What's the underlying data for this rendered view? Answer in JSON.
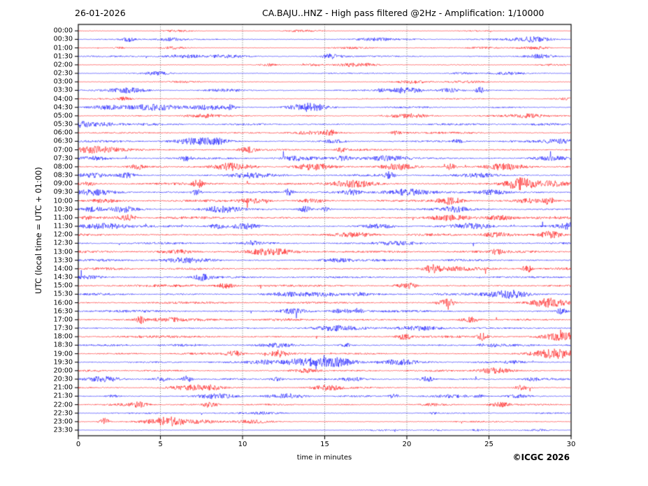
{
  "header": {
    "date": "26-01-2026",
    "title": "CA.BAJU..HNZ - High pass filtered @2Hz - Amplification: 1/10000"
  },
  "y_axis": {
    "label": "UTC (local time = UTC + 01:00)",
    "tick_labels": [
      "00:00",
      "00:30",
      "01:00",
      "01:30",
      "02:00",
      "02:30",
      "03:00",
      "03:30",
      "04:00",
      "04:30",
      "05:00",
      "05:30",
      "06:00",
      "06:30",
      "07:00",
      "07:30",
      "08:00",
      "08:30",
      "09:00",
      "09:30",
      "10:00",
      "10:30",
      "11:00",
      "11:30",
      "12:00",
      "12:30",
      "13:00",
      "13:30",
      "14:00",
      "14:30",
      "15:00",
      "15:30",
      "16:00",
      "16:30",
      "17:00",
      "17:30",
      "18:00",
      "18:30",
      "19:00",
      "19:30",
      "20:00",
      "20:30",
      "21:00",
      "21:30",
      "22:00",
      "22:30",
      "23:00",
      "23:30"
    ]
  },
  "x_axis": {
    "label": "time in minutes",
    "ticks": [
      "0",
      "5",
      "10",
      "15",
      "20",
      "25",
      "30"
    ],
    "range": [
      0,
      30
    ]
  },
  "footer": {
    "copyright": "©ICGC 2026"
  },
  "colors": {
    "trace_hour": "#ff0000",
    "trace_half_hour": "#0000ff",
    "grid": "#444444",
    "frame": "#000000",
    "background": "#ffffff",
    "text": "#000000"
  },
  "chart_data": {
    "type": "line",
    "subtype": "helicorder-seismogram",
    "station": "CA.BAJU..HNZ",
    "date_shown": "26-01-2026",
    "filter": "High pass filtered @2Hz",
    "amplification": "1/10000",
    "minutes_per_row": 30,
    "rows": 48,
    "grid_minutes": [
      5,
      10,
      15,
      20,
      25
    ],
    "row_labels": [
      "00:00",
      "00:30",
      "01:00",
      "01:30",
      "02:00",
      "02:30",
      "03:00",
      "03:30",
      "04:00",
      "04:30",
      "05:00",
      "05:30",
      "06:00",
      "06:30",
      "07:00",
      "07:30",
      "08:00",
      "08:30",
      "09:00",
      "09:30",
      "10:00",
      "10:30",
      "11:00",
      "11:30",
      "12:00",
      "12:30",
      "13:00",
      "13:30",
      "14:00",
      "14:30",
      "15:00",
      "15:30",
      "16:00",
      "16:30",
      "17:00",
      "17:30",
      "18:00",
      "18:30",
      "19:00",
      "19:30",
      "20:00",
      "20:30",
      "21:00",
      "21:30",
      "22:00",
      "22:30",
      "23:00",
      "23:30"
    ],
    "row_color_rule": "rows on the hour are red, rows on the half hour are blue",
    "noise_amplitude": [
      0.35,
      0.8,
      0.5,
      0.9,
      0.6,
      0.7,
      0.6,
      0.9,
      0.8,
      1.0,
      0.9,
      1.3,
      1.1,
      1.2,
      1.3,
      1.3,
      1.4,
      1.3,
      1.4,
      1.4,
      1.4,
      1.3,
      1.5,
      1.3,
      1.4,
      1.3,
      1.5,
      1.4,
      1.4,
      1.3,
      1.4,
      1.3,
      1.3,
      1.4,
      1.4,
      1.3,
      1.4,
      1.3,
      1.2,
      1.1,
      1.1,
      1.2,
      1.0,
      1.0,
      0.9,
      0.8,
      0.8,
      0.4
    ],
    "events": [
      {
        "row": 7,
        "minute": 24.5,
        "amp": 3.5
      },
      {
        "row": 9,
        "minute": 9.3,
        "amp": 2.5
      },
      {
        "row": 14,
        "minute": 16.0,
        "amp": 2.5
      },
      {
        "row": 16,
        "minute": 22.7,
        "amp": 3.5
      },
      {
        "row": 19,
        "minute": 12.8,
        "amp": 3.5
      },
      {
        "row": 20,
        "minute": 28.7,
        "amp": 4.5
      },
      {
        "row": 22,
        "minute": 0.6,
        "amp": 2.5
      },
      {
        "row": 26,
        "minute": 25.5,
        "amp": 2.5
      },
      {
        "row": 28,
        "minute": 27.3,
        "amp": 4.5
      },
      {
        "row": 30,
        "minute": 20.3,
        "amp": 3.0
      },
      {
        "row": 33,
        "minute": 29.4,
        "amp": 3.0
      },
      {
        "row": 34,
        "minute": 3.8,
        "amp": 4.0
      },
      {
        "row": 36,
        "minute": 24.6,
        "amp": 4.0
      },
      {
        "row": 37,
        "minute": 16.3,
        "amp": 2.5
      },
      {
        "row": 41,
        "minute": 6.6,
        "amp": 3.5
      },
      {
        "row": 43,
        "minute": 19.2,
        "amp": 2.5
      },
      {
        "row": 46,
        "minute": 1.6,
        "amp": 4.0
      }
    ],
    "seed": 20260126
  }
}
